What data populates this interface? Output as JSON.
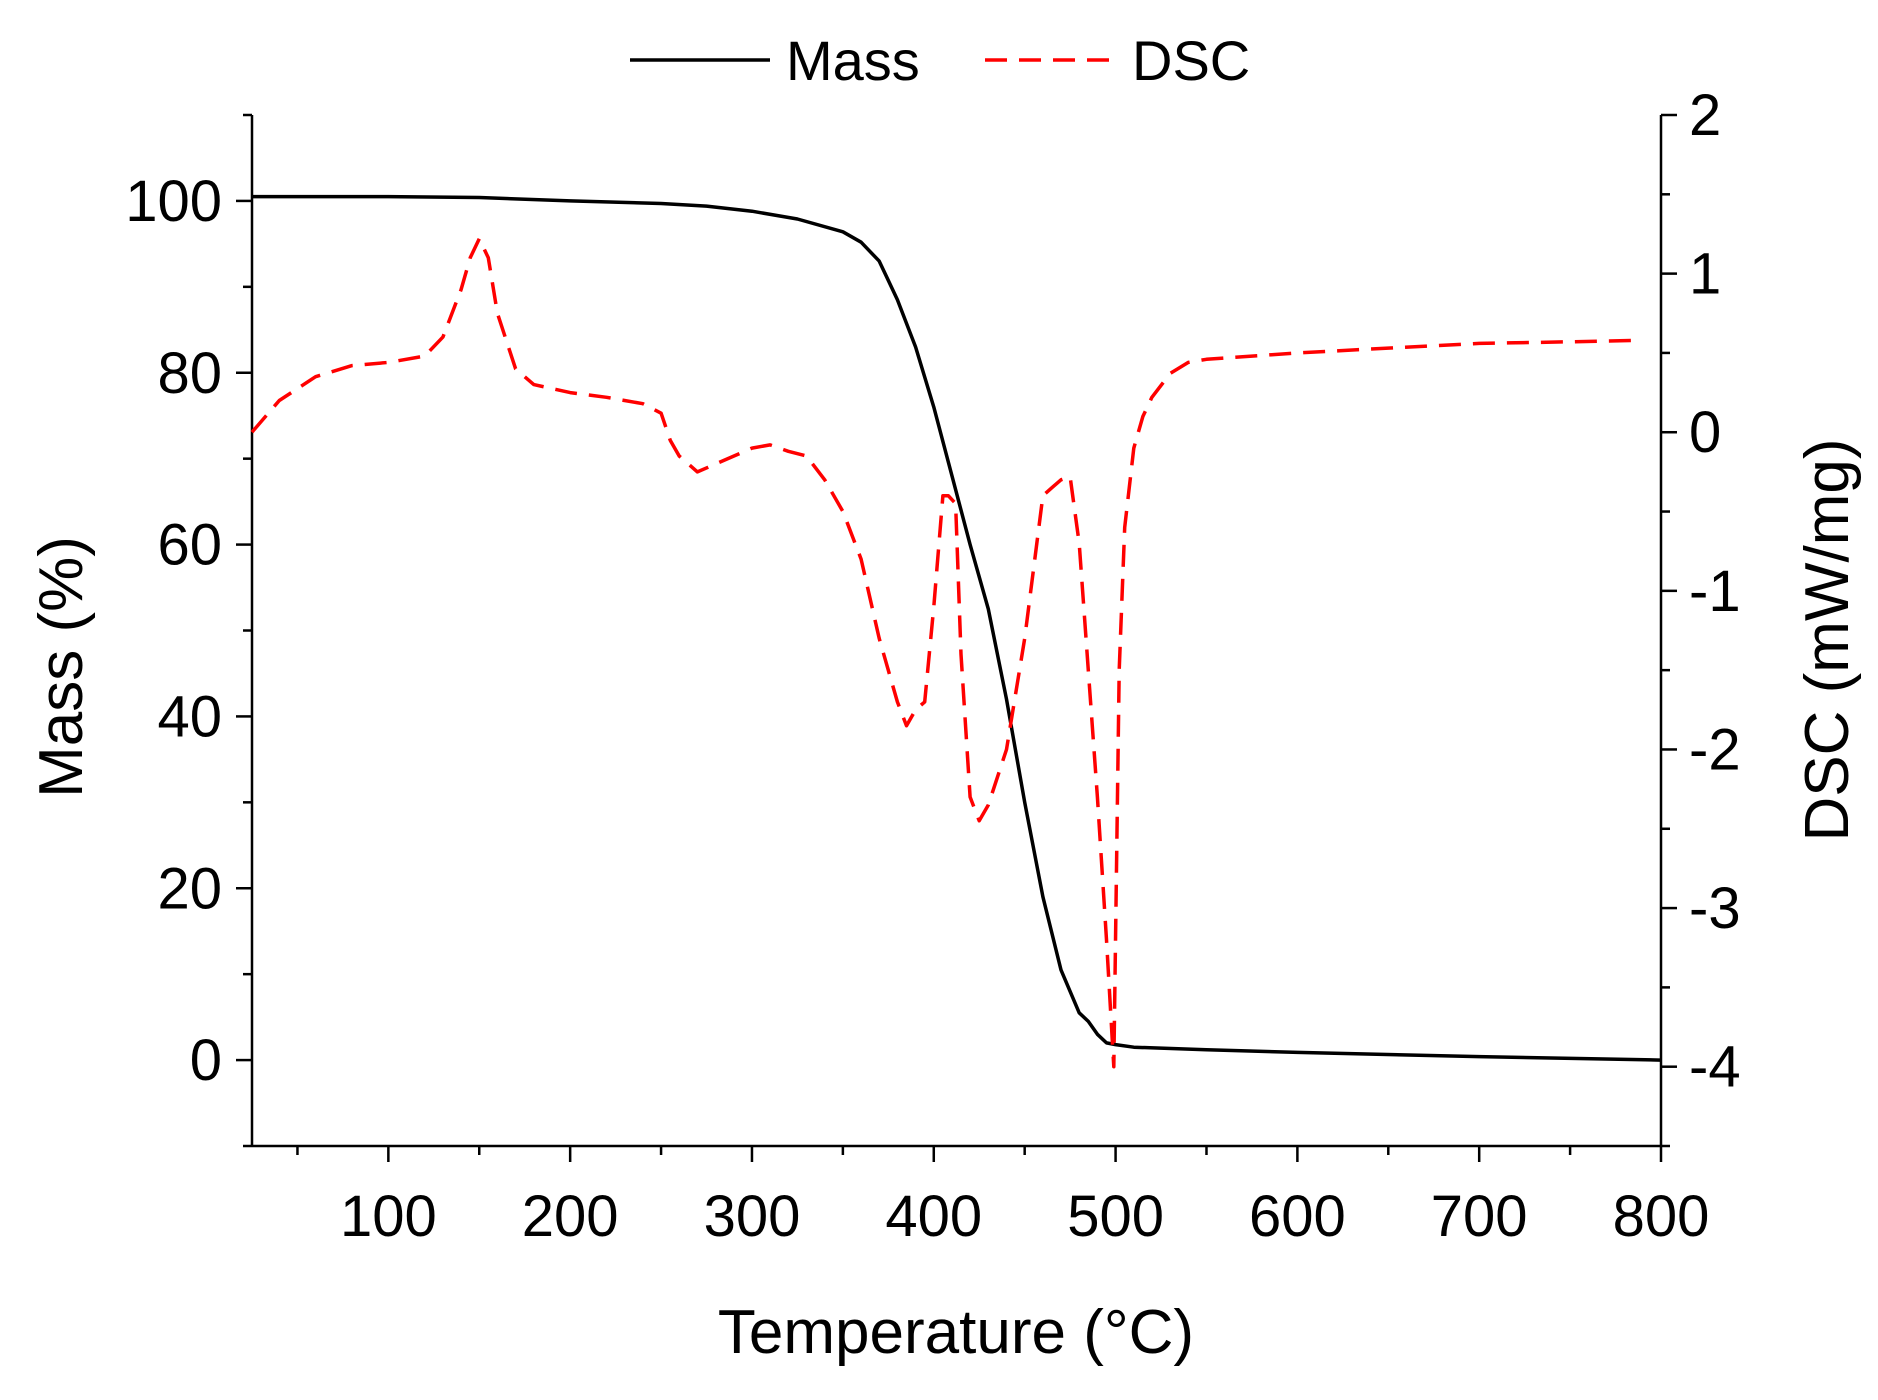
{
  "chart_data": {
    "type": "line",
    "title": "",
    "xlabel": "Temperature (°C)",
    "ylabel": "Mass (%)",
    "y2label": "DSC (mW/mg)",
    "xlim": [
      25,
      800
    ],
    "ylim": [
      -10,
      110
    ],
    "y2lim": [
      -4.5,
      2
    ],
    "xticks": [
      100,
      200,
      300,
      400,
      500,
      600,
      700,
      800
    ],
    "xtick_labels": [
      "100",
      "200",
      "300",
      "400",
      "500",
      "600",
      "700",
      "800"
    ],
    "yticks": [
      0,
      20,
      40,
      60,
      80,
      100
    ],
    "ytick_labels": [
      "0",
      "20",
      "40",
      "60",
      "80",
      "100"
    ],
    "y2ticks": [
      -4,
      -3,
      -2,
      -1,
      0,
      1,
      2
    ],
    "y2tick_labels": [
      "-4",
      "-3",
      "-2",
      "-1",
      "0",
      "1",
      "2"
    ],
    "legend_position": "top-center",
    "series": [
      {
        "name": "Mass",
        "axis": "left",
        "color": "#000000",
        "style": "solid",
        "x": [
          25,
          100,
          150,
          200,
          250,
          275,
          300,
          325,
          350,
          360,
          370,
          380,
          390,
          400,
          410,
          420,
          430,
          440,
          450,
          460,
          470,
          480,
          485,
          490,
          495,
          500,
          510,
          550,
          600,
          700,
          800
        ],
        "y": [
          100.5,
          100.5,
          100.4,
          100.0,
          99.7,
          99.4,
          98.8,
          97.9,
          96.4,
          95.2,
          93.0,
          88.5,
          83.0,
          76.0,
          68.0,
          60.0,
          52.5,
          42.0,
          30.0,
          19.0,
          10.5,
          5.5,
          4.5,
          3.0,
          2.0,
          1.8,
          1.5,
          1.2,
          0.9,
          0.4,
          0.0
        ]
      },
      {
        "name": "DSC",
        "axis": "right",
        "color": "#ff0000",
        "style": "dashed",
        "x": [
          25,
          40,
          60,
          80,
          100,
          120,
          130,
          140,
          145,
          150,
          155,
          160,
          170,
          180,
          200,
          220,
          240,
          250,
          255,
          260,
          270,
          280,
          300,
          310,
          320,
          330,
          340,
          350,
          360,
          370,
          380,
          385,
          390,
          395,
          400,
          405,
          408,
          412,
          415,
          420,
          425,
          430,
          440,
          450,
          460,
          465,
          470,
          475,
          480,
          485,
          490,
          495,
          499,
          502,
          505,
          510,
          515,
          520,
          530,
          540,
          550,
          600,
          700,
          750,
          790
        ],
        "y": [
          0.0,
          0.2,
          0.35,
          0.42,
          0.44,
          0.48,
          0.6,
          0.9,
          1.1,
          1.22,
          1.1,
          0.75,
          0.4,
          0.3,
          0.25,
          0.22,
          0.18,
          0.12,
          -0.05,
          -0.15,
          -0.25,
          -0.2,
          -0.1,
          -0.08,
          -0.12,
          -0.15,
          -0.3,
          -0.5,
          -0.8,
          -1.3,
          -1.7,
          -1.85,
          -1.75,
          -1.7,
          -1.1,
          -0.4,
          -0.4,
          -0.45,
          -1.4,
          -2.3,
          -2.45,
          -2.35,
          -2.0,
          -1.3,
          -0.4,
          -0.35,
          -0.3,
          -0.28,
          -0.7,
          -1.5,
          -2.3,
          -3.2,
          -4.0,
          -1.5,
          -0.6,
          -0.1,
          0.1,
          0.22,
          0.37,
          0.44,
          0.46,
          0.5,
          0.56,
          0.57,
          0.58
        ]
      }
    ]
  }
}
